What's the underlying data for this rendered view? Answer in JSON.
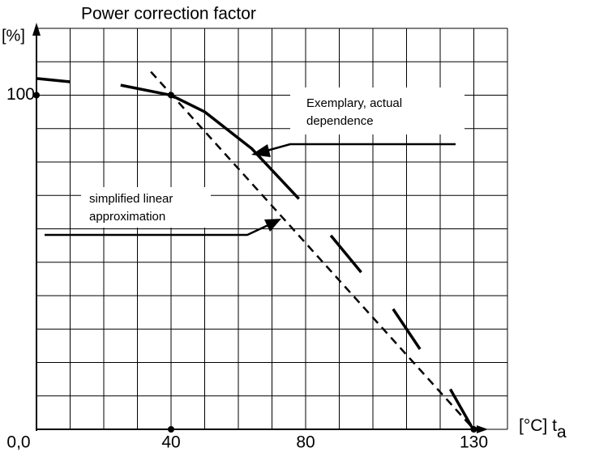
{
  "chart_data": {
    "type": "line",
    "title": "Power correction factor",
    "y_label": "[%]",
    "x_label": "[°C] t",
    "x_label_sub": "a",
    "xlim": [
      0,
      140
    ],
    "ylim": [
      0,
      120
    ],
    "xticks": [
      {
        "value": 0,
        "label": "0,0"
      },
      40,
      80,
      130
    ],
    "yticks": [
      100
    ],
    "xgrid": [
      0,
      10,
      20,
      30,
      40,
      50,
      60,
      70,
      80,
      90,
      100,
      110,
      120,
      130,
      140
    ],
    "ygrid": [
      0,
      10,
      20,
      30,
      40,
      50,
      60,
      70,
      80,
      90,
      100,
      110,
      120
    ],
    "grid": true,
    "series": [
      {
        "color": "#000000",
        "dashed": false,
        "x": [
          0,
          10,
          null,
          25,
          40,
          50,
          64,
          78,
          null,
          87.5,
          96.5,
          null,
          106,
          114,
          null,
          123,
          129.5
        ],
        "values": [
          105,
          104,
          null,
          103,
          100,
          95,
          84,
          69,
          null,
          58,
          47,
          null,
          36,
          24,
          null,
          12,
          0.5
        ]
      },
      {
        "color": "#000000",
        "dashed": true,
        "x": [
          34,
          130
        ],
        "values": [
          107,
          0
        ]
      }
    ],
    "points": {
      "x": [
        0,
        40,
        40,
        130
      ],
      "values": [
        100,
        100,
        0,
        0
      ]
    },
    "annotations": [
      {
        "lines": [
          "Exemplary, actual",
          "dependence"
        ]
      },
      {
        "lines": [
          "simplified linear",
          "approximation"
        ]
      }
    ]
  }
}
